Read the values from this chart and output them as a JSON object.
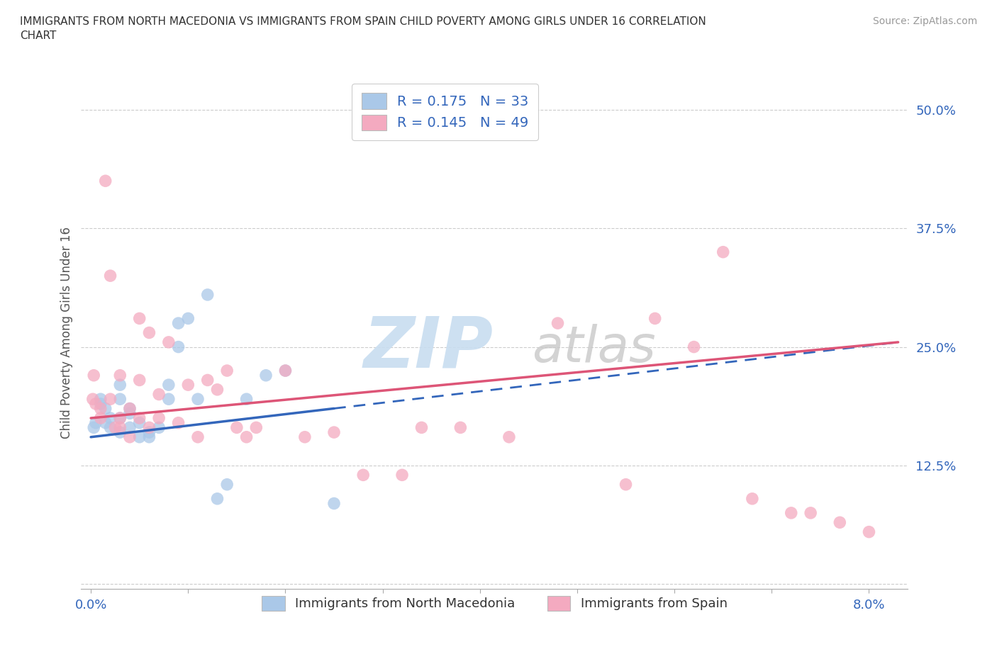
{
  "title": "IMMIGRANTS FROM NORTH MACEDONIA VS IMMIGRANTS FROM SPAIN CHILD POVERTY AMONG GIRLS UNDER 16 CORRELATION\nCHART",
  "source_text": "Source: ZipAtlas.com",
  "ylabel": "Child Poverty Among Girls Under 16",
  "xlim": [
    -0.001,
    0.084
  ],
  "ylim": [
    -0.005,
    0.535
  ],
  "x_ticks": [
    0.0,
    0.01,
    0.02,
    0.03,
    0.04,
    0.05,
    0.06,
    0.07,
    0.08
  ],
  "x_tick_labels": [
    "0.0%",
    "",
    "",
    "",
    "",
    "",
    "",
    "",
    "8.0%"
  ],
  "y_ticks": [
    0.0,
    0.125,
    0.25,
    0.375,
    0.5
  ],
  "y_tick_labels": [
    "",
    "12.5%",
    "25.0%",
    "37.5%",
    "50.0%"
  ],
  "legend1_label": "R = 0.175   N = 33",
  "legend2_label": "R = 0.145   N = 49",
  "legend_color1": "#aac8e8",
  "legend_color2": "#f4aac0",
  "scatter_color1": "#aac8e8",
  "scatter_color2": "#f4aac0",
  "line_color1": "#3366bb",
  "line_color2": "#dd5577",
  "watermark_zip": "ZIP",
  "watermark_atlas": "atlas",
  "scatter1_x": [
    0.0003,
    0.0005,
    0.001,
    0.001,
    0.0015,
    0.0015,
    0.002,
    0.002,
    0.003,
    0.003,
    0.003,
    0.003,
    0.004,
    0.004,
    0.004,
    0.005,
    0.005,
    0.006,
    0.006,
    0.007,
    0.008,
    0.008,
    0.009,
    0.009,
    0.01,
    0.011,
    0.012,
    0.013,
    0.014,
    0.016,
    0.018,
    0.02,
    0.025
  ],
  "scatter1_y": [
    0.165,
    0.17,
    0.19,
    0.195,
    0.17,
    0.185,
    0.165,
    0.175,
    0.16,
    0.175,
    0.195,
    0.21,
    0.18,
    0.165,
    0.185,
    0.155,
    0.17,
    0.155,
    0.16,
    0.165,
    0.195,
    0.21,
    0.25,
    0.275,
    0.28,
    0.195,
    0.305,
    0.09,
    0.105,
    0.195,
    0.22,
    0.225,
    0.085
  ],
  "scatter2_x": [
    0.0002,
    0.0003,
    0.0005,
    0.001,
    0.001,
    0.0015,
    0.002,
    0.002,
    0.0025,
    0.003,
    0.003,
    0.003,
    0.004,
    0.004,
    0.005,
    0.005,
    0.005,
    0.006,
    0.006,
    0.007,
    0.007,
    0.008,
    0.009,
    0.01,
    0.011,
    0.012,
    0.013,
    0.014,
    0.015,
    0.016,
    0.017,
    0.02,
    0.022,
    0.025,
    0.028,
    0.032,
    0.034,
    0.038,
    0.043,
    0.048,
    0.055,
    0.058,
    0.062,
    0.065,
    0.068,
    0.072,
    0.074,
    0.077,
    0.08
  ],
  "scatter2_y": [
    0.195,
    0.22,
    0.19,
    0.175,
    0.185,
    0.425,
    0.325,
    0.195,
    0.165,
    0.22,
    0.175,
    0.165,
    0.185,
    0.155,
    0.215,
    0.175,
    0.28,
    0.165,
    0.265,
    0.175,
    0.2,
    0.255,
    0.17,
    0.21,
    0.155,
    0.215,
    0.205,
    0.225,
    0.165,
    0.155,
    0.165,
    0.225,
    0.155,
    0.16,
    0.115,
    0.115,
    0.165,
    0.165,
    0.155,
    0.275,
    0.105,
    0.28,
    0.25,
    0.35,
    0.09,
    0.075,
    0.075,
    0.065,
    0.055
  ],
  "line1_x": [
    0.0,
    0.083
  ],
  "line1_y": [
    0.155,
    0.255
  ],
  "line1_solid_end": 0.025,
  "line2_x": [
    0.0,
    0.083
  ],
  "line2_y": [
    0.175,
    0.255
  ],
  "legend_bottom1": "Immigrants from North Macedonia",
  "legend_bottom2": "Immigrants from Spain"
}
